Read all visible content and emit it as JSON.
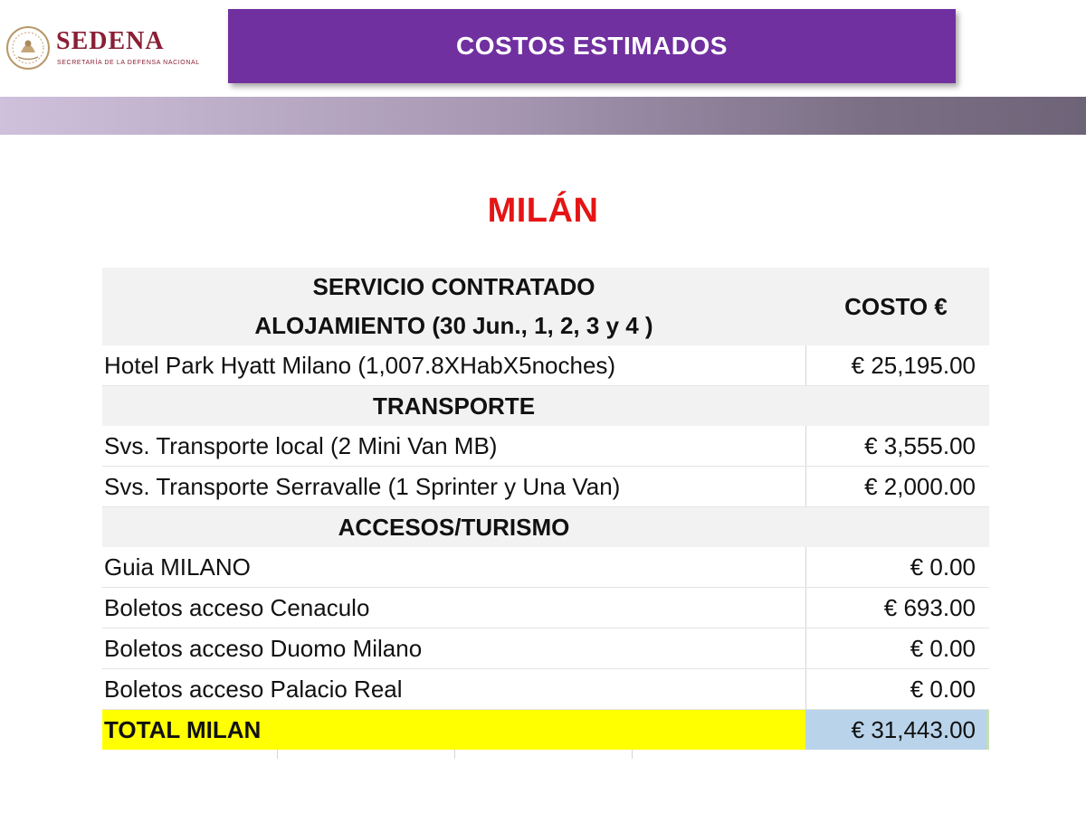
{
  "header": {
    "logo_text": "SEDENA",
    "logo_subtitle": "SECRETARÍA DE LA DEFENSA NACIONAL",
    "title": "COSTOS ESTIMADOS"
  },
  "city": "MILÁN",
  "table": {
    "header_line1": "SERVICIO CONTRATADO",
    "header_line2": "ALOJAMIENTO (30 Jun., 1, 2, 3 y 4 )",
    "cost_header": "COSTO €",
    "rows": [
      {
        "kind": "item",
        "desc": "Hotel Park Hyatt Milano (1,007.8XHabX5noches)",
        "cost": "€ 25,195.00"
      },
      {
        "kind": "section",
        "desc": "TRANSPORTE"
      },
      {
        "kind": "item",
        "desc": "Svs. Transporte local (2 Mini Van MB)",
        "cost": "€ 3,555.00"
      },
      {
        "kind": "item",
        "desc": "Svs. Transporte Serravalle  (1 Sprinter y Una Van)",
        "cost": "€ 2,000.00"
      },
      {
        "kind": "section",
        "desc": "ACCESOS/TURISMO"
      },
      {
        "kind": "item",
        "desc": "Guia MILANO",
        "cost": "€ 0.00"
      },
      {
        "kind": "item",
        "desc": "Boletos acceso Cenaculo",
        "cost": "€ 693.00"
      },
      {
        "kind": "item",
        "desc": "Boletos acceso Duomo Milano",
        "cost": "€ 0.00"
      },
      {
        "kind": "item",
        "desc": "Boletos acceso Palacio Real",
        "cost": "€ 0.00"
      }
    ],
    "total_label": "TOTAL MILAN",
    "total_value": "€ 31,443.00"
  },
  "colors": {
    "title_bar": "#7030a0",
    "city_title": "#e51515",
    "total_highlight": "#ffff00",
    "total_value_bg": "#b8d3ea"
  }
}
